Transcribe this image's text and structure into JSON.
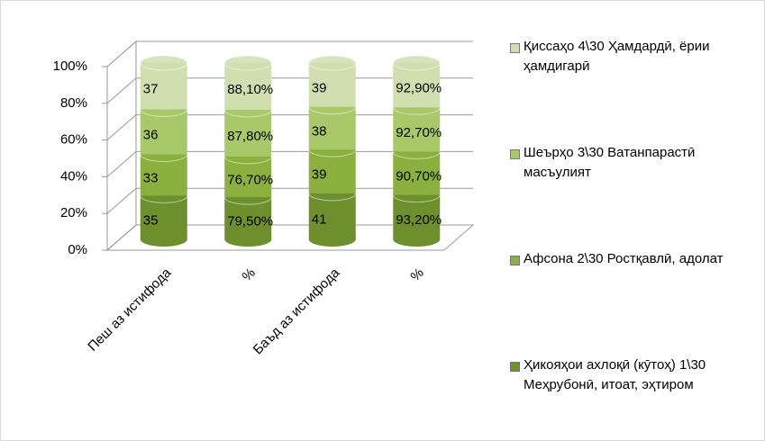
{
  "chart_data": {
    "type": "bar",
    "stacking": "percent",
    "categories": [
      "Пеш аз истифода",
      "%",
      "Баъд аз истифода",
      "%"
    ],
    "series": [
      {
        "name": "Ҳикояҳои ахлоқӣ (кӯтоҳ) 1\\30 Меҳрубонӣ, итоат, эҳтиром",
        "color": "#6f8f2e",
        "values": [
          35,
          79.5,
          41,
          93.2
        ],
        "value_labels": [
          "35",
          "79,50%",
          "41",
          "93,20%"
        ]
      },
      {
        "name": "Афсона 2\\30 Ростқавлӣ, адолат",
        "color": "#8cb040",
        "values": [
          33,
          76.7,
          39,
          90.7
        ],
        "value_labels": [
          "33",
          "76,70%",
          "39",
          "90,70%"
        ]
      },
      {
        "name": "Шеърҳо 3\\30 Ватанпарастӣ масъулият",
        "color": "#a9c86a",
        "values": [
          36,
          87.8,
          38,
          92.7
        ],
        "value_labels": [
          "36",
          "87,80%",
          "38",
          "92,70%"
        ]
      },
      {
        "name": "Қиссаҳо 4\\30 Ҳамдардӣ, ёрии ҳамдигарӣ",
        "color": "#d0deb0",
        "values": [
          37,
          88.1,
          39,
          92.9
        ],
        "value_labels": [
          "37",
          "88,10%",
          "39",
          "92,90%"
        ]
      }
    ],
    "ylim": [
      0,
      100
    ],
    "yticks": [
      {
        "value": 0,
        "label": "0%"
      },
      {
        "value": 20,
        "label": "20%"
      },
      {
        "value": 40,
        "label": "40%"
      },
      {
        "value": 60,
        "label": "60%"
      },
      {
        "value": 80,
        "label": "80%"
      },
      {
        "value": 100,
        "label": "100%"
      }
    ],
    "grid": true,
    "legend": "right"
  }
}
